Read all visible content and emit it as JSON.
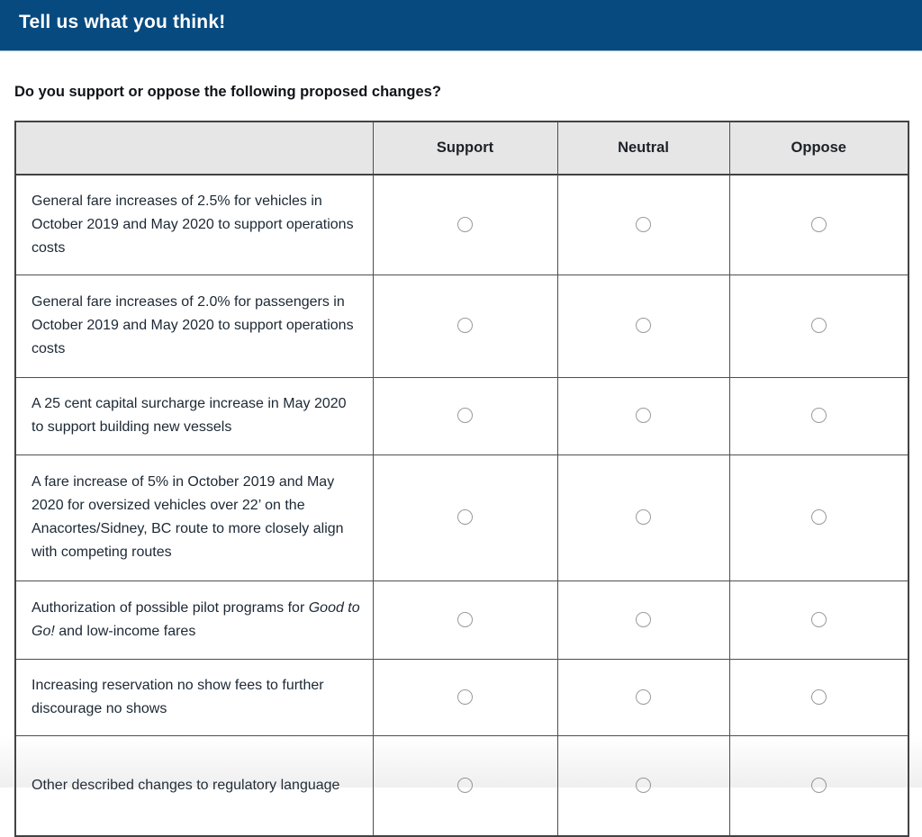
{
  "header": {
    "title": "Tell us what you think!"
  },
  "question": "Do you support or oppose the following proposed changes?",
  "table": {
    "columns": [
      "Support",
      "Neutral",
      "Oppose"
    ],
    "rows": [
      {
        "parts": [
          {
            "text": "General fare increases of 2.5% for vehicles in October 2019 and May 2020 to support operations costs"
          }
        ]
      },
      {
        "parts": [
          {
            "text": "General fare increases of 2.0% for passengers in October 2019 and May 2020 to support operations costs"
          }
        ]
      },
      {
        "parts": [
          {
            "text": "A 25 cent capital surcharge increase in May 2020 to support building new vessels"
          }
        ]
      },
      {
        "parts": [
          {
            "text": "A fare increase of 5% in October 2019 and May 2020 for oversized vehicles over 22’ on the Anacortes/Sidney, BC route to more closely align with competing routes"
          }
        ]
      },
      {
        "parts": [
          {
            "text": "Authorization of possible pilot programs for "
          },
          {
            "text": "Good to Go!",
            "italic": true
          },
          {
            "text": " and low-income fares"
          }
        ]
      },
      {
        "parts": [
          {
            "text": "Increasing reservation no show fees to further discourage no shows"
          }
        ]
      },
      {
        "parts": [
          {
            "text": "Other described changes to regulatory language"
          }
        ]
      }
    ]
  },
  "colors": {
    "banner_blue": "#074a80",
    "header_gray": "#e6e6e6",
    "border_dark": "#434345",
    "label_text": "#1c2834",
    "radio_border": "#9a9a9a"
  }
}
